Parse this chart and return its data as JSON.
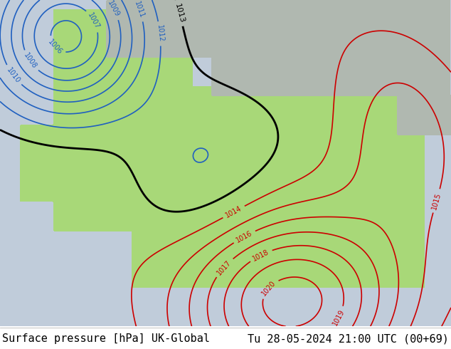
{
  "title_left": "Surface pressure [hPa] UK-Global",
  "title_right": "Tu 28-05-2024 21:00 UTC (00+69)",
  "footer_text_color": "#000000",
  "footer_fontsize": 11,
  "figsize": [
    6.34,
    4.9
  ],
  "dpi": 100,
  "land_color": "#a8d878",
  "sea_color": "#c0ccda",
  "grey_land_color": "#b0b8b0",
  "blue_isobar_color": "#2060c0",
  "red_isobar_color": "#cc0000",
  "black_isobar_color": "#000000"
}
